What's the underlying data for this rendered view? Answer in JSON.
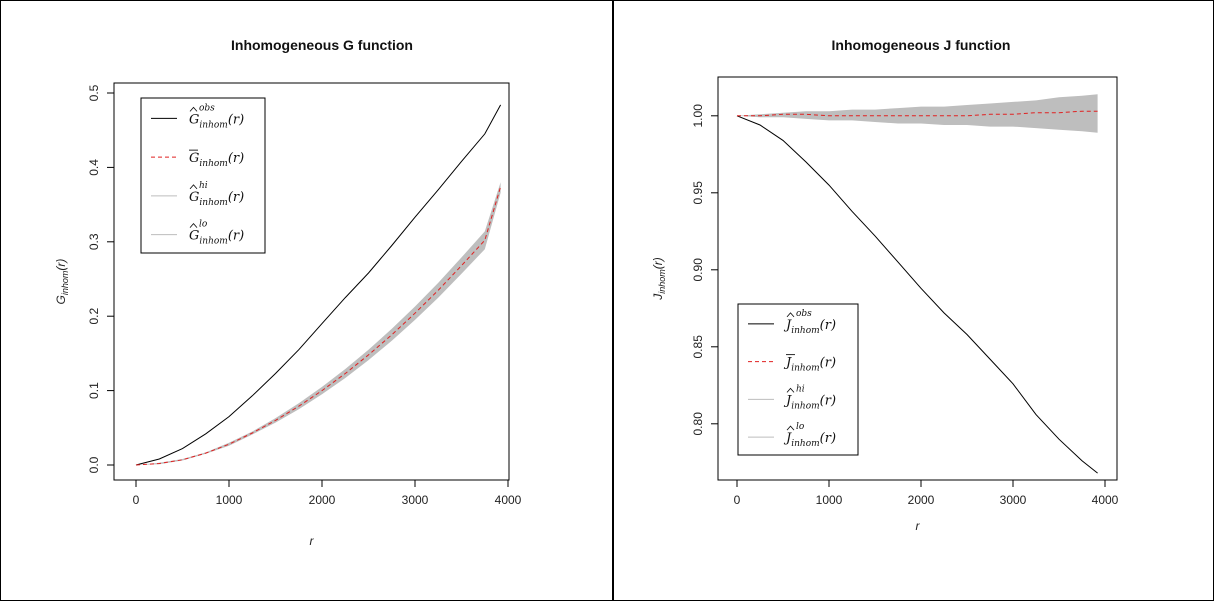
{
  "chart_data": [
    {
      "type": "line",
      "title": "Inhomogeneous G function",
      "xlabel": "r",
      "ylabel": {
        "main": "G",
        "sub": "inhom",
        "suffix": "(r)"
      },
      "xlim": [
        0,
        4000
      ],
      "ylim": [
        0,
        0.5
      ],
      "x_ticks": [
        "0",
        "1000",
        "2000",
        "3000",
        "4000"
      ],
      "y_ticks": [
        "0.0",
        "0.1",
        "0.2",
        "0.3",
        "0.4",
        "0.5"
      ],
      "grid": false,
      "legend_position": "top-left",
      "x": [
        0,
        250,
        500,
        750,
        1000,
        1250,
        1500,
        1750,
        2000,
        2250,
        2500,
        2750,
        3000,
        3250,
        3500,
        3750,
        3920
      ],
      "series": [
        {
          "legend": {
            "sym": "G",
            "sup": "obs",
            "sub": "inhom",
            "suffix": "(r)",
            "accent": "hat"
          },
          "style": "solid",
          "color": "#000000",
          "values": [
            0,
            0.008,
            0.022,
            0.042,
            0.065,
            0.093,
            0.123,
            0.155,
            0.19,
            0.225,
            0.258,
            0.295,
            0.333,
            0.37,
            0.408,
            0.445,
            0.484
          ]
        },
        {
          "legend": {
            "sym": "G",
            "sup": "",
            "sub": "inhom",
            "suffix": "(r)",
            "accent": "bar"
          },
          "style": "dashed",
          "color": "#e02020",
          "values": [
            0,
            0.002,
            0.007,
            0.016,
            0.028,
            0.043,
            0.06,
            0.079,
            0.1,
            0.123,
            0.148,
            0.175,
            0.204,
            0.235,
            0.268,
            0.302,
            0.374
          ]
        },
        {
          "legend": {
            "sym": "G",
            "sup": "hi",
            "sub": "inhom",
            "suffix": "(r)",
            "accent": "hat"
          },
          "style": "band-upper",
          "color": "#bdbdbd",
          "values": [
            0,
            0.003,
            0.008,
            0.017,
            0.03,
            0.045,
            0.063,
            0.083,
            0.105,
            0.129,
            0.155,
            0.183,
            0.213,
            0.245,
            0.279,
            0.314,
            0.38
          ]
        },
        {
          "legend": {
            "sym": "G",
            "sup": "lo",
            "sub": "inhom",
            "suffix": "(r)",
            "accent": "hat"
          },
          "style": "band-lower",
          "color": "#bdbdbd",
          "values": [
            0,
            0.001,
            0.006,
            0.015,
            0.026,
            0.041,
            0.057,
            0.075,
            0.095,
            0.117,
            0.141,
            0.167,
            0.195,
            0.225,
            0.257,
            0.29,
            0.366
          ]
        }
      ]
    },
    {
      "type": "line",
      "title": "Inhomogeneous J function",
      "xlabel": "r",
      "ylabel": {
        "main": "J",
        "sub": "inhom",
        "suffix": "(r)"
      },
      "xlim": [
        0,
        4000
      ],
      "ylim": [
        0.77,
        1.02
      ],
      "x_ticks": [
        "0",
        "1000",
        "2000",
        "3000",
        "4000"
      ],
      "y_ticks": [
        "0.80",
        "0.85",
        "0.90",
        "0.95",
        "1.00"
      ],
      "grid": false,
      "legend_position": "bottom-left",
      "x": [
        0,
        250,
        500,
        750,
        1000,
        1250,
        1500,
        1750,
        2000,
        2250,
        2500,
        2750,
        3000,
        3250,
        3500,
        3750,
        3920
      ],
      "series": [
        {
          "legend": {
            "sym": "J",
            "sup": "obs",
            "sub": "inhom",
            "suffix": "(r)",
            "accent": "hat"
          },
          "style": "solid",
          "color": "#000000",
          "values": [
            1.0,
            0.994,
            0.984,
            0.97,
            0.955,
            0.938,
            0.922,
            0.905,
            0.888,
            0.872,
            0.858,
            0.842,
            0.826,
            0.806,
            0.79,
            0.776,
            0.768
          ]
        },
        {
          "legend": {
            "sym": "J",
            "sup": "",
            "sub": "inhom",
            "suffix": "(r)",
            "accent": "bar"
          },
          "style": "dashed",
          "color": "#e02020",
          "values": [
            1.0,
            1.0,
            1.001,
            1.001,
            1.0,
            1.0,
            1.0,
            1.0,
            1.0,
            1.0,
            1.0,
            1.001,
            1.001,
            1.002,
            1.002,
            1.003,
            1.003
          ]
        },
        {
          "legend": {
            "sym": "J",
            "sup": "hi",
            "sub": "inhom",
            "suffix": "(r)",
            "accent": "hat"
          },
          "style": "band-upper",
          "color": "#bdbdbd",
          "values": [
            1.0,
            1.001,
            1.002,
            1.003,
            1.003,
            1.004,
            1.004,
            1.005,
            1.006,
            1.006,
            1.007,
            1.008,
            1.009,
            1.01,
            1.012,
            1.013,
            1.014
          ]
        },
        {
          "legend": {
            "sym": "J",
            "sup": "lo",
            "sub": "inhom",
            "suffix": "(r)",
            "accent": "hat"
          },
          "style": "band-lower",
          "color": "#bdbdbd",
          "values": [
            1.0,
            0.999,
            0.999,
            0.998,
            0.997,
            0.997,
            0.996,
            0.995,
            0.995,
            0.994,
            0.994,
            0.993,
            0.993,
            0.992,
            0.991,
            0.99,
            0.989
          ]
        }
      ]
    }
  ]
}
